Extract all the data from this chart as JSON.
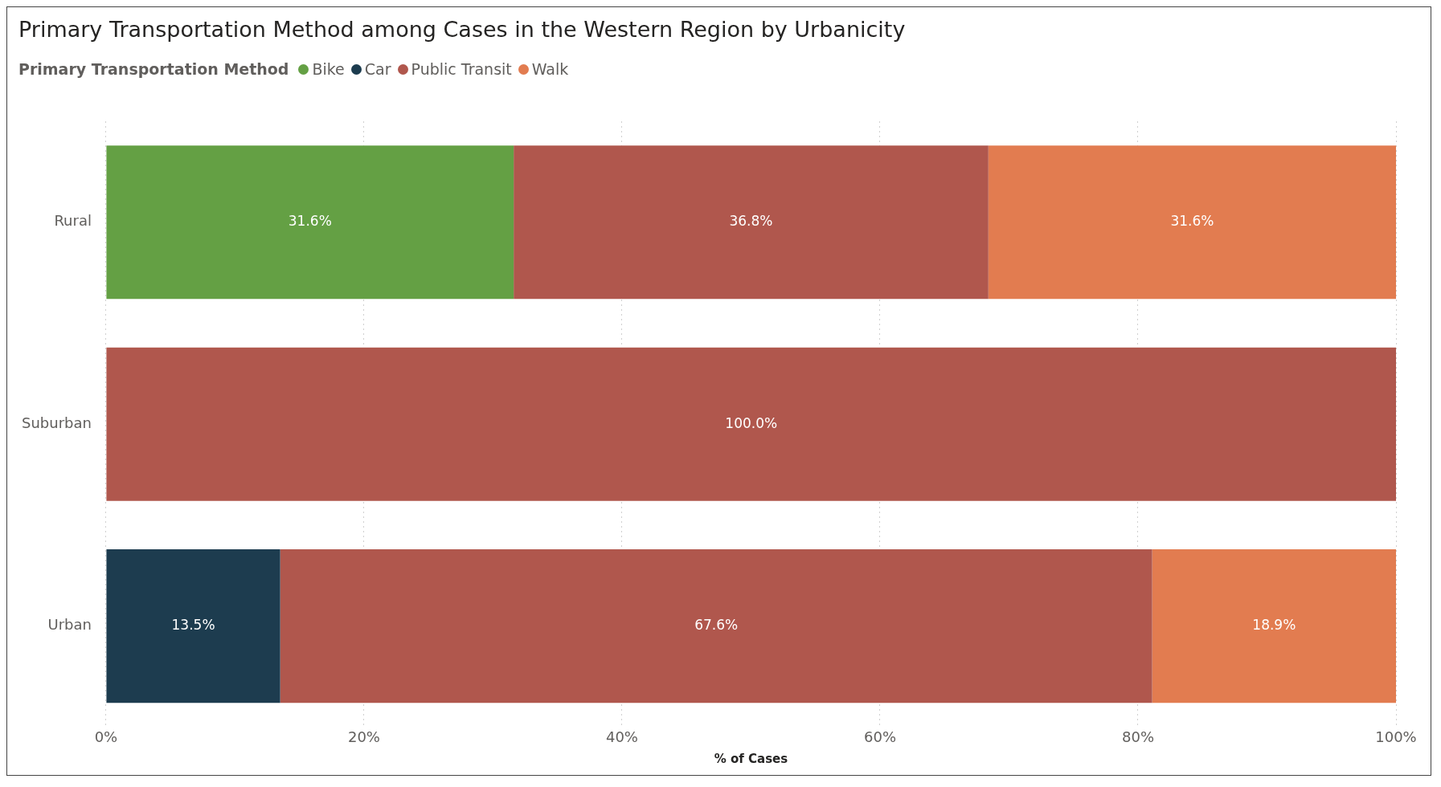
{
  "chart_data": {
    "type": "bar",
    "orientation": "horizontal",
    "stacked": true,
    "title": "Primary Transportation Method among Cases in the Western Region by Urbanicity",
    "legend_title": "Primary Transportation Method",
    "xlabel": "% of Cases",
    "categories": [
      "Rural",
      "Suburban",
      "Urban"
    ],
    "series": [
      {
        "name": "Bike",
        "color": "#64a044",
        "values": [
          31.6,
          null,
          null
        ],
        "value_labels": [
          "31.6%",
          null,
          null
        ]
      },
      {
        "name": "Car",
        "color": "#1d3c4f",
        "values": [
          null,
          null,
          13.5
        ],
        "value_labels": [
          null,
          null,
          "13.5%"
        ]
      },
      {
        "name": "Public Transit",
        "color": "#b0574d",
        "values": [
          36.8,
          100,
          67.6
        ],
        "value_labels": [
          "36.8%",
          "100.0%",
          "67.6%"
        ]
      },
      {
        "name": "Walk",
        "color": "#e27c50",
        "values": [
          31.6,
          null,
          18.9
        ],
        "value_labels": [
          "31.6%",
          null,
          "18.9%"
        ]
      }
    ],
    "xlim": [
      0,
      100
    ],
    "xticks": [
      {
        "value": 0,
        "label": "0%"
      },
      {
        "value": 20,
        "label": "20%"
      },
      {
        "value": 40,
        "label": "40%"
      },
      {
        "value": 60,
        "label": "60%"
      },
      {
        "value": 80,
        "label": "80%"
      },
      {
        "value": 100,
        "label": "100%"
      }
    ],
    "grid": "x",
    "legend": "top left"
  }
}
